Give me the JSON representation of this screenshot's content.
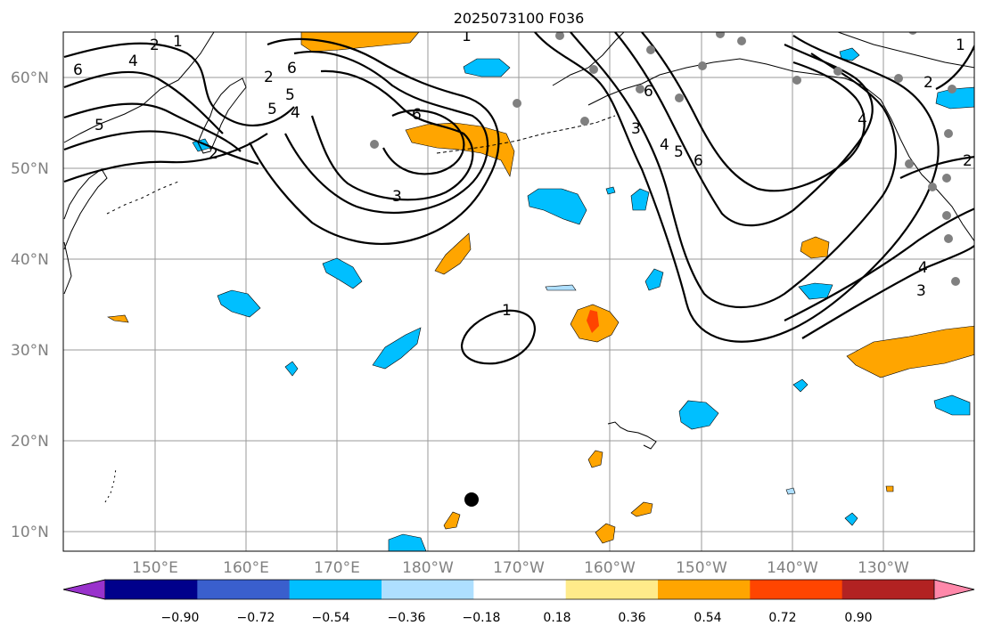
{
  "title": "2025073100 F036",
  "lat_labels": [
    "60°N",
    "50°N",
    "40°N",
    "30°N",
    "20°N",
    "10°N"
  ],
  "lon_labels": [
    "150°E",
    "160°E",
    "170°E",
    "180°W",
    "170°W",
    "160°W",
    "150°W",
    "140°W",
    "130°W"
  ],
  "contour_labels": [
    "6",
    "4",
    "5",
    "2",
    "1",
    "2",
    "3",
    "5",
    "6",
    "6",
    "5",
    "4",
    "2",
    "6",
    "3",
    "1",
    "1",
    "4",
    "4",
    "5",
    "6",
    "1",
    "2",
    "2",
    "4",
    "3"
  ],
  "colorbar": {
    "tick_labels": [
      "−0.90",
      "−0.72",
      "−0.54",
      "−0.36",
      "−0.18",
      "0.18",
      "0.36",
      "0.54",
      "0.72",
      "0.90"
    ],
    "colors": [
      "#9932CC",
      "#00008B",
      "#3A5FCD",
      "#00BFFF",
      "#AEDFFF",
      "#FFFFFF",
      "#FFEB8A",
      "#FFA500",
      "#FF4500",
      "#B22222",
      "#FF88AA"
    ]
  }
}
